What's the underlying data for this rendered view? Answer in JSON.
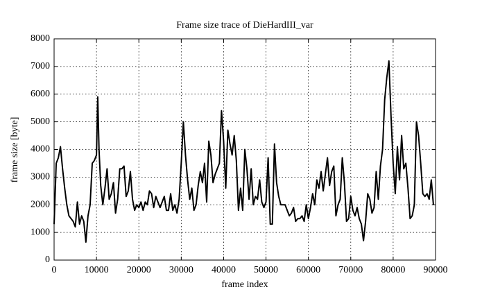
{
  "chart_data": {
    "type": "line",
    "title": "Frame size trace of DieHardIII_var",
    "x_label": "frame index",
    "y_label": "frame size [byte]",
    "x": [
      0,
      500,
      1000,
      1500,
      2000,
      2500,
      3000,
      3500,
      4000,
      4500,
      5000,
      5500,
      6000,
      6500,
      7000,
      7500,
      8000,
      8500,
      9000,
      9500,
      10000,
      10300,
      10600,
      11000,
      11500,
      12000,
      12500,
      13000,
      13500,
      14000,
      14500,
      15000,
      15500,
      16000,
      16500,
      17000,
      17500,
      18000,
      18500,
      19000,
      19500,
      20000,
      20500,
      21000,
      21500,
      22000,
      22500,
      23000,
      23500,
      24000,
      24500,
      25000,
      25500,
      26000,
      26500,
      27000,
      27500,
      28000,
      28500,
      29000,
      29500,
      30000,
      30500,
      31000,
      31500,
      32000,
      32500,
      33000,
      33500,
      34000,
      34500,
      35000,
      35500,
      36000,
      36500,
      37000,
      37500,
      38000,
      38500,
      39000,
      39500,
      40000,
      40500,
      41000,
      41500,
      42000,
      42500,
      43000,
      43500,
      44000,
      44500,
      45000,
      45500,
      46000,
      46500,
      47000,
      47500,
      48000,
      48500,
      49000,
      49500,
      50000,
      50500,
      51000,
      51500,
      52000,
      52500,
      53000,
      53500,
      54000,
      54500,
      55000,
      55500,
      56000,
      56500,
      57000,
      57500,
      58000,
      58500,
      59000,
      59500,
      60000,
      60500,
      61000,
      61500,
      62000,
      62500,
      63000,
      63500,
      64000,
      64500,
      65000,
      65500,
      66000,
      66500,
      67000,
      67500,
      68000,
      68500,
      69000,
      69500,
      70000,
      70500,
      71000,
      71500,
      72000,
      72500,
      73000,
      73500,
      74000,
      74500,
      75000,
      75500,
      76000,
      76500,
      77000,
      77500,
      78000,
      78500,
      79000,
      79500,
      80000,
      80500,
      81000,
      81500,
      82000,
      82500,
      83000,
      83500,
      84000,
      84500,
      85000,
      85500,
      86000,
      86500,
      87000,
      87500,
      88000,
      88500,
      89000,
      89500
    ],
    "values": [
      1300,
      3500,
      3700,
      4100,
      3300,
      2600,
      2000,
      1600,
      1500,
      1400,
      1200,
      2100,
      1300,
      1600,
      1400,
      650,
      1600,
      2000,
      3500,
      3600,
      3800,
      5900,
      4000,
      2700,
      2000,
      2600,
      3300,
      2200,
      2400,
      2800,
      1700,
      2200,
      3300,
      3300,
      3400,
      2300,
      2500,
      3200,
      2200,
      1800,
      2000,
      1900,
      2100,
      1800,
      2100,
      2000,
      2500,
      2400,
      1900,
      2300,
      2100,
      1900,
      2100,
      2300,
      1800,
      1800,
      2400,
      1800,
      2000,
      1700,
      2200,
      3500,
      5000,
      3800,
      2900,
      2200,
      2600,
      1800,
      2000,
      2700,
      3200,
      2800,
      3500,
      2100,
      4300,
      3800,
      2800,
      3100,
      3300,
      3500,
      5400,
      4300,
      2600,
      4700,
      4200,
      3800,
      4500,
      3600,
      1800,
      2600,
      1800,
      4000,
      3300,
      2200,
      3300,
      2000,
      2300,
      2200,
      2900,
      2100,
      1900,
      2100,
      3700,
      1300,
      1300,
      4200,
      2800,
      2300,
      2000,
      2000,
      2000,
      1800,
      1600,
      1700,
      1900,
      1400,
      1500,
      1500,
      1600,
      1400,
      2000,
      1500,
      1900,
      2400,
      2000,
      2900,
      2600,
      3200,
      2500,
      3100,
      3700,
      2700,
      3200,
      3400,
      1600,
      2000,
      2200,
      3700,
      2800,
      1400,
      1500,
      2300,
      1800,
      1600,
      1900,
      1500,
      1300,
      700,
      1400,
      2400,
      2200,
      1700,
      1900,
      3200,
      2200,
      3400,
      4000,
      5800,
      6600,
      7200,
      5200,
      3500,
      2400,
      4100,
      2900,
      4500,
      3300,
      3500,
      2600,
      1500,
      1600,
      2000,
      5000,
      4500,
      3500,
      2400,
      2300,
      2400,
      2200,
      2900,
      2000
    ],
    "color": "#000000",
    "xlim": [
      0,
      90000
    ],
    "xticks": [
      0,
      10000,
      20000,
      30000,
      40000,
      50000,
      60000,
      70000,
      80000,
      90000
    ],
    "ylim": [
      0,
      8000
    ],
    "yticks": [
      0,
      1000,
      2000,
      3000,
      4000,
      5000,
      6000,
      7000,
      8000
    ],
    "grid": true
  }
}
